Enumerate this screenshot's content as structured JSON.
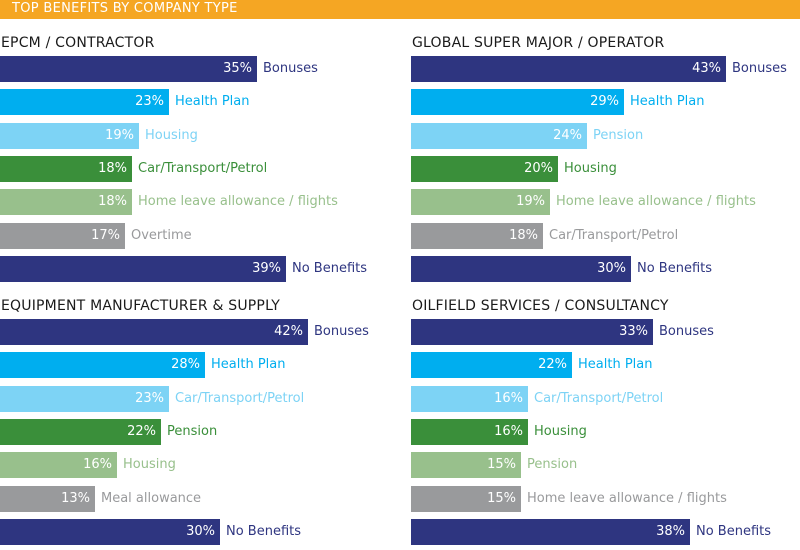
{
  "header": {
    "title": "TOP BENEFITS BY COMPANY TYPE",
    "color": "#f5a623"
  },
  "colors": {
    "navy": "#2e3580",
    "sky": "#00aeef",
    "lightsky": "#7dd3f5",
    "green": "#3a8f3a",
    "lightgreen": "#98c08c",
    "gray": "#999a9c"
  },
  "chart_data": [
    {
      "type": "bar",
      "title": "EPCM / CONTRACTOR",
      "categories": [
        "Bonuses",
        "Health Plan",
        "Housing",
        "Car/Transport/Petrol",
        "Home leave allowance / flights",
        "Overtime",
        "No Benefits"
      ],
      "values": [
        35,
        23,
        19,
        18,
        18,
        17,
        39
      ],
      "value_labels": [
        "35%",
        "23%",
        "19%",
        "18%",
        "18%",
        "17%",
        "39%"
      ],
      "colors": [
        "navy",
        "sky",
        "lightsky",
        "green",
        "lightgreen",
        "gray",
        "navy"
      ]
    },
    {
      "type": "bar",
      "title": "GLOBAL SUPER MAJOR / OPERATOR",
      "categories": [
        "Bonuses",
        "Health Plan",
        "Pension",
        "Housing",
        "Home leave allowance / flights",
        "Car/Transport/Petrol",
        "No Benefits"
      ],
      "values": [
        43,
        29,
        24,
        20,
        19,
        18,
        30
      ],
      "value_labels": [
        "43%",
        "29%",
        "24%",
        "20%",
        "19%",
        "18%",
        "30%"
      ],
      "colors": [
        "navy",
        "sky",
        "lightsky",
        "green",
        "lightgreen",
        "gray",
        "navy"
      ]
    },
    {
      "type": "bar",
      "title": "EQUIPMENT MANUFACTURER & SUPPLY",
      "categories": [
        "Bonuses",
        "Health Plan",
        "Car/Transport/Petrol",
        "Pension",
        "Housing",
        "Meal allowance",
        "No Benefits"
      ],
      "values": [
        42,
        28,
        23,
        22,
        16,
        13,
        30
      ],
      "value_labels": [
        "42%",
        "28%",
        "23%",
        "22%",
        "16%",
        "13%",
        "30%"
      ],
      "colors": [
        "navy",
        "sky",
        "lightsky",
        "green",
        "lightgreen",
        "gray",
        "navy"
      ]
    },
    {
      "type": "bar",
      "title": "OILFIELD SERVICES / CONSULTANCY",
      "categories": [
        "Bonuses",
        "Health Plan",
        "Car/Transport/Petrol",
        "Housing",
        "Pension",
        "Home leave allowance / flights",
        "No Benefits"
      ],
      "values": [
        33,
        22,
        16,
        16,
        15,
        15,
        38
      ],
      "value_labels": [
        "33%",
        "22%",
        "16%",
        "16%",
        "15%",
        "15%",
        "38%"
      ],
      "colors": [
        "navy",
        "sky",
        "lightsky",
        "green",
        "lightgreen",
        "gray",
        "navy"
      ]
    }
  ]
}
